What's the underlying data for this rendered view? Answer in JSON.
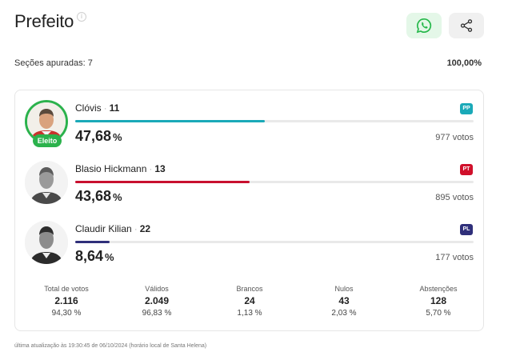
{
  "header": {
    "title": "Prefeito",
    "info_icon": "info-icon",
    "whatsapp_icon": "whatsapp-icon",
    "share_icon": "share-icon"
  },
  "summary": {
    "sections_label": "Seções apuradas: 7",
    "percent_counted": "100,00%"
  },
  "candidates": [
    {
      "name": "Clóvis",
      "number": "11",
      "party": "PP",
      "party_color": "#1aa9b8",
      "bar_color": "#1aa9b8",
      "percent": "47,68",
      "percent_value": 47.68,
      "votes": "977 votos",
      "elected_label": "Eleito"
    },
    {
      "name": "Blasio Hickmann",
      "number": "13",
      "party": "PT",
      "party_color": "#d0102b",
      "bar_color": "#c8102e",
      "percent": "43,68",
      "percent_value": 43.68,
      "votes": "895 votos"
    },
    {
      "name": "Claudir Kilian",
      "number": "22",
      "party": "PL",
      "party_color": "#2f2f7a",
      "bar_color": "#2f2f7a",
      "percent": "8,64",
      "percent_value": 8.64,
      "votes": "177 votos"
    }
  ],
  "percent_unit": "%",
  "stats": [
    {
      "label": "Total de votos",
      "value": "2.116",
      "percent": "94,30 %"
    },
    {
      "label": "Válidos",
      "value": "2.049",
      "percent": "96,83 %"
    },
    {
      "label": "Brancos",
      "value": "24",
      "percent": "1,13 %"
    },
    {
      "label": "Nulos",
      "value": "43",
      "percent": "2,03 %"
    },
    {
      "label": "Abstenções",
      "value": "128",
      "percent": "5,70 %"
    }
  ],
  "footer": {
    "updated": "última atualização às 19:30:45 de 06/10/2024 (horário local de Santa Helena)"
  },
  "colors": {
    "elected": "#2bb24c",
    "whatsapp": "#25b84a"
  }
}
